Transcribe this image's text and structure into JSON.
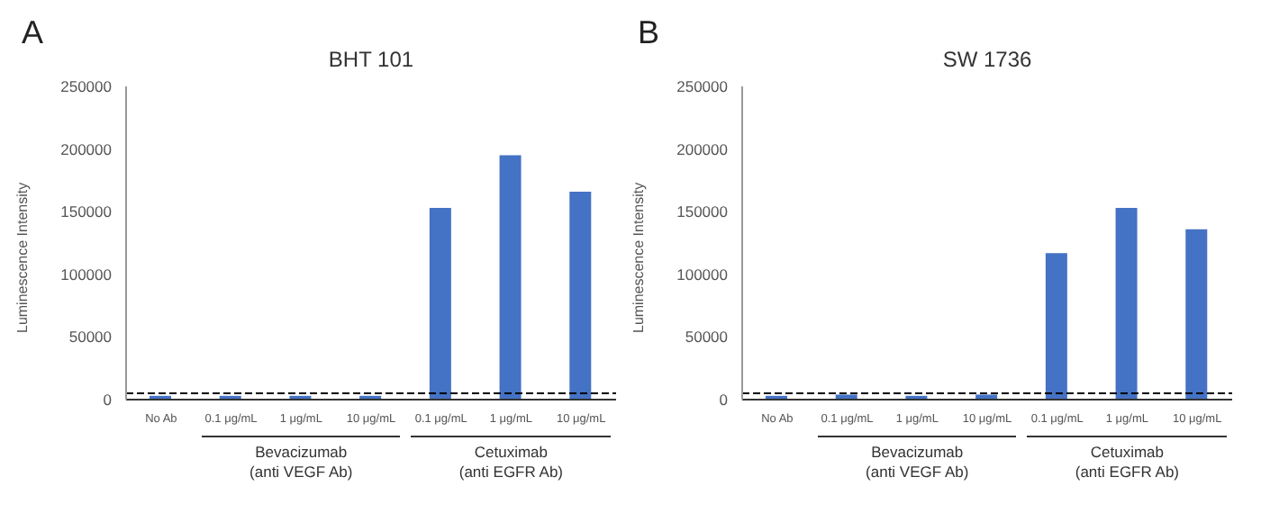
{
  "chart_data": [
    {
      "type": "bar",
      "title": "BHT 101",
      "ylabel": "Luminescence Intensity",
      "annotations": [
        "A",
        "Bevacizumab\n(anti VEGF Ab)",
        "Cetuximab\n(anti EGFR Ab)"
      ],
      "categories": [
        "No Ab",
        "0.1 μg/mL",
        "1 μg/mL",
        "10 μg/mL",
        "0.1 μg/mL",
        "1 μg/mL",
        "10 μg/mL"
      ],
      "values": [
        3000,
        3000,
        3000,
        3000,
        153000,
        195000,
        166000
      ],
      "color": "#4472c4",
      "ylim": [
        0,
        250000
      ],
      "yticks": [
        0,
        50000,
        100000,
        150000,
        200000,
        250000
      ],
      "ref_lines": [
        {
          "axis": "y",
          "value": 5000,
          "color": "#000000",
          "line_style": "dashed"
        }
      ]
    },
    {
      "type": "bar",
      "title": "SW 1736",
      "ylabel": "Luminescence Intensity",
      "annotations": [
        "B",
        "Bevacizumab\n(anti VEGF Ab)",
        "Cetuximab\n(anti EGFR Ab)"
      ],
      "categories": [
        "No Ab",
        "0.1 μg/mL",
        "1 μg/mL",
        "10 μg/mL",
        "0.1 μg/mL",
        "1 μg/mL",
        "10 μg/mL"
      ],
      "values": [
        3000,
        4000,
        3000,
        4000,
        117000,
        153000,
        136000
      ],
      "color": "#4472c4",
      "ylim": [
        0,
        250000
      ],
      "yticks": [
        0,
        50000,
        100000,
        150000,
        200000,
        250000
      ],
      "ref_lines": [
        {
          "axis": "y",
          "value": 5000,
          "color": "#000000",
          "line_style": "dashed"
        }
      ]
    }
  ]
}
